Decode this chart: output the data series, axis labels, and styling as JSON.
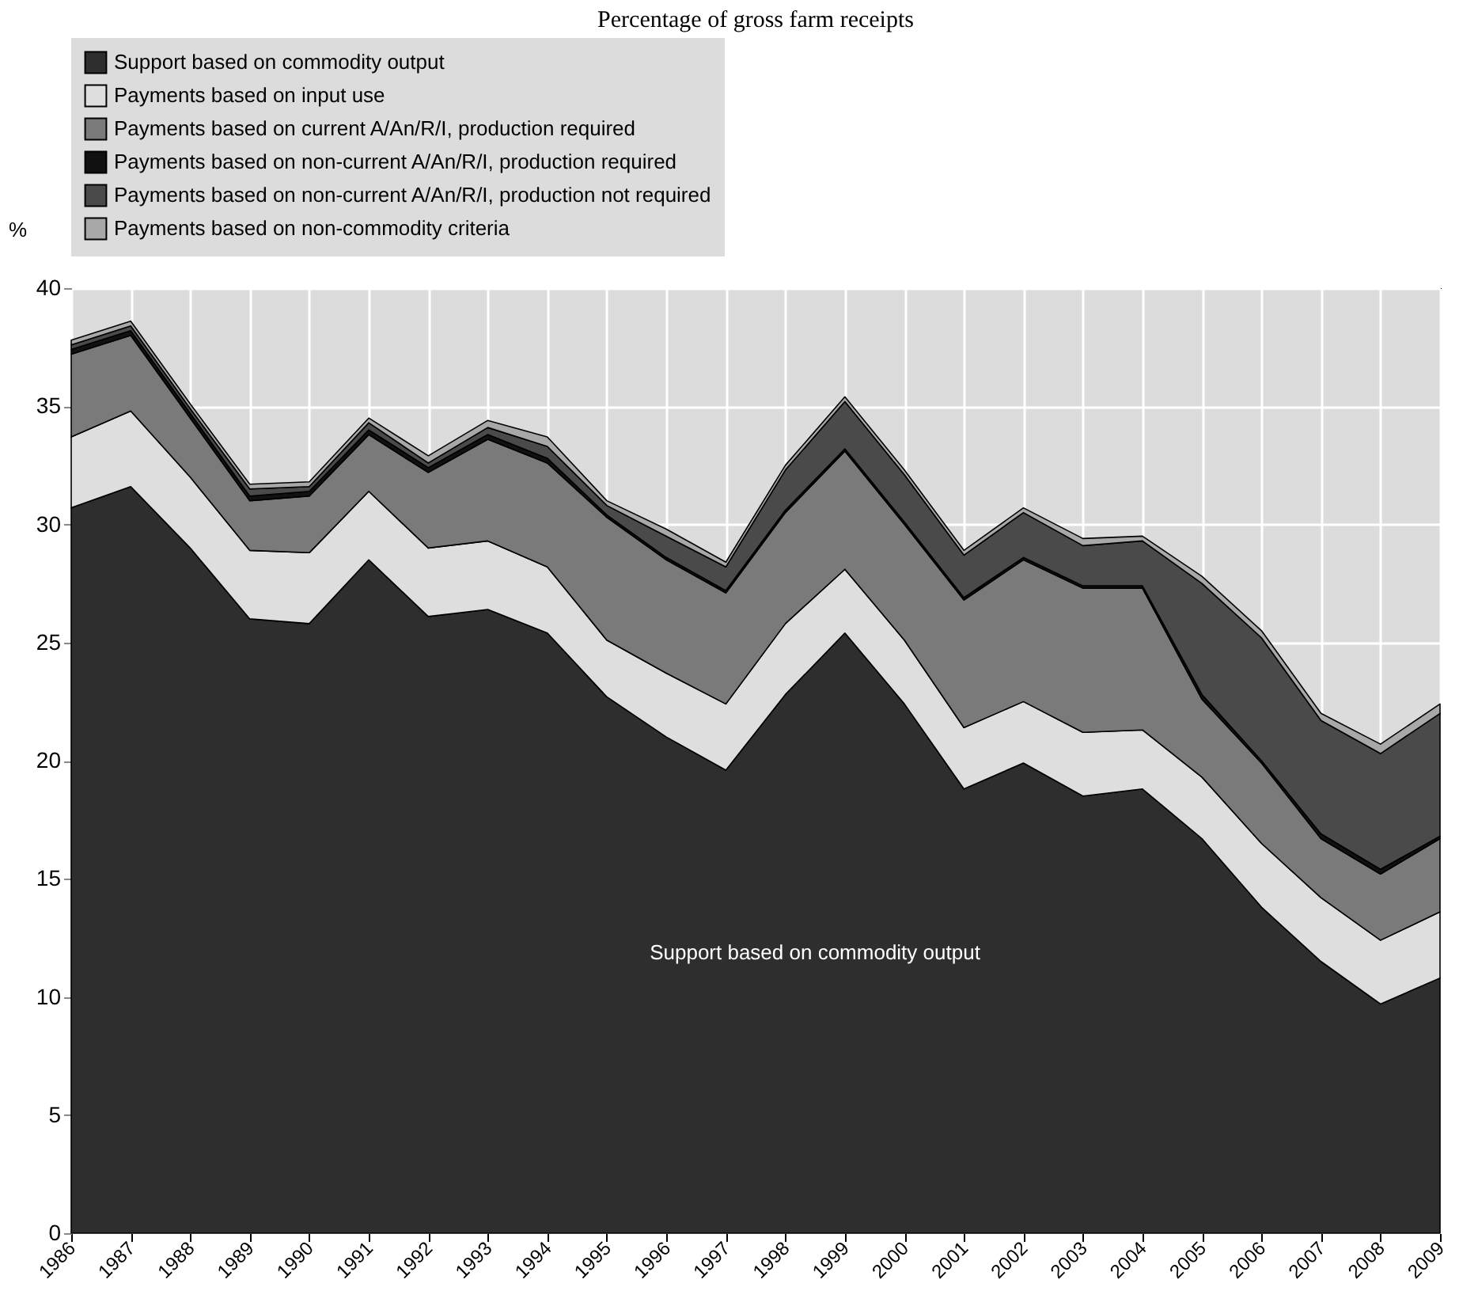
{
  "chart_data": {
    "type": "area",
    "title": "Percentage of gross farm receipts",
    "ylabel": "%",
    "stacked": true,
    "grid": true,
    "legend": "top",
    "categories": [
      "1986",
      "1987",
      "1988",
      "1989",
      "1990",
      "1991",
      "1992",
      "1993",
      "1994",
      "1995",
      "1996",
      "1997",
      "1998",
      "1999",
      "2000",
      "2001",
      "2002",
      "2003",
      "2004",
      "2005",
      "2006",
      "2007",
      "2008",
      "2009"
    ],
    "ylim": [
      0,
      40
    ],
    "yticks": [
      0,
      5,
      10,
      15,
      20,
      25,
      30,
      35,
      40
    ],
    "series": [
      {
        "name": "Support based on commodity output",
        "color": "#2e2e2e",
        "values": [
          30.7,
          31.6,
          29.0,
          26.0,
          25.8,
          28.5,
          26.1,
          26.4,
          25.4,
          22.7,
          21.0,
          19.6,
          22.8,
          25.4,
          22.4,
          18.8,
          19.9,
          18.5,
          18.8,
          16.7,
          13.8,
          11.5,
          9.7,
          10.8
        ]
      },
      {
        "name": "Payments based on input use",
        "color": "#dedede",
        "values": [
          3.0,
          3.2,
          3.0,
          2.9,
          3.0,
          2.9,
          2.9,
          2.9,
          2.8,
          2.4,
          2.7,
          2.8,
          3.0,
          2.7,
          2.7,
          2.6,
          2.6,
          2.7,
          2.5,
          2.6,
          2.7,
          2.7,
          2.7,
          2.8
        ]
      },
      {
        "name": "Payments based on current A/An/R/I, production required",
        "color": "#7a7a7a",
        "values": [
          3.5,
          3.2,
          2.5,
          2.1,
          2.4,
          2.4,
          3.2,
          4.3,
          4.4,
          5.2,
          4.8,
          4.7,
          4.7,
          5.0,
          4.9,
          5.4,
          6.0,
          6.1,
          6.0,
          3.3,
          3.4,
          2.5,
          2.8,
          3.1
        ]
      },
      {
        "name": "Payments based on non-current A/An/R/I, production required",
        "color": "#111111",
        "values": [
          0.2,
          0.2,
          0.2,
          0.2,
          0.2,
          0.2,
          0.2,
          0.2,
          0.2,
          0.1,
          0.1,
          0.1,
          0.1,
          0.1,
          0.1,
          0.1,
          0.1,
          0.1,
          0.1,
          0.2,
          0.1,
          0.2,
          0.2,
          0.1
        ]
      },
      {
        "name": "Payments based on non-current A/An/R/I, production not required",
        "color": "#4a4a4a",
        "values": [
          0.2,
          0.2,
          0.2,
          0.3,
          0.2,
          0.3,
          0.2,
          0.3,
          0.5,
          0.4,
          0.9,
          1.0,
          1.7,
          2.0,
          2.0,
          1.8,
          1.9,
          1.7,
          1.9,
          4.7,
          5.2,
          4.8,
          4.9,
          5.2
        ]
      },
      {
        "name": "Payments based on non-commodity criteria",
        "color": "#a8a8a8",
        "values": [
          0.2,
          0.2,
          0.2,
          0.2,
          0.2,
          0.2,
          0.3,
          0.3,
          0.4,
          0.2,
          0.3,
          0.2,
          0.2,
          0.2,
          0.2,
          0.2,
          0.2,
          0.3,
          0.2,
          0.3,
          0.3,
          0.3,
          0.4,
          0.4
        ]
      }
    ],
    "annotations": [
      "Support based on commodity output"
    ]
  }
}
